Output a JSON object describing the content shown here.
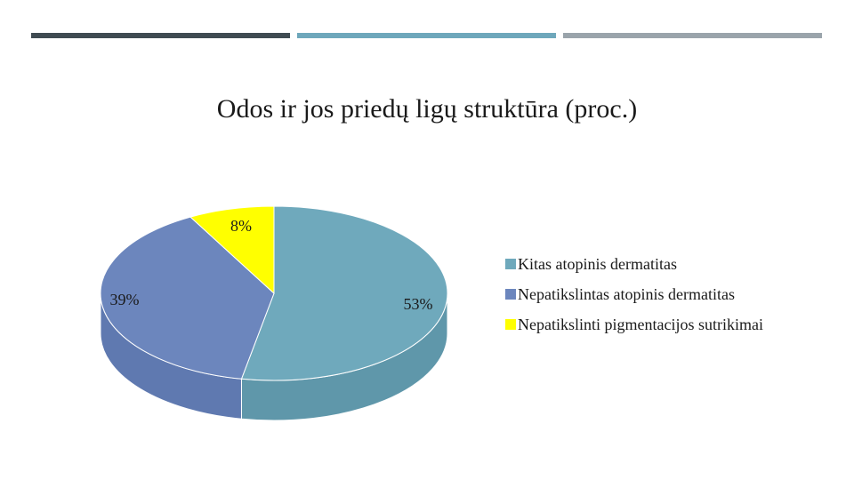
{
  "colors": {
    "bar_dark": "#3f4b52",
    "bar_teal": "#6ea7bb",
    "bar_gray": "#9aa4ab"
  },
  "chart_data": {
    "type": "pie",
    "title": "Odos ir jos priedų ligų struktūra (proc.)",
    "legend_position": "right",
    "slices": [
      {
        "name": "Kitas atopinis dermatitas",
        "value": 53,
        "label": "53%",
        "color": "#6fa9bc",
        "side_color": "#5f97aa"
      },
      {
        "name": "Nepatikslintas atopinis dermatitas",
        "value": 39,
        "label": "39%",
        "color": "#6c86bd",
        "side_color": "#5f79b0"
      },
      {
        "name": "Nepatikslinti pigmentacijos sutrikimai",
        "value": 8,
        "label": "8%",
        "color": "#ffff00",
        "side_color": "#e0e000"
      }
    ]
  }
}
